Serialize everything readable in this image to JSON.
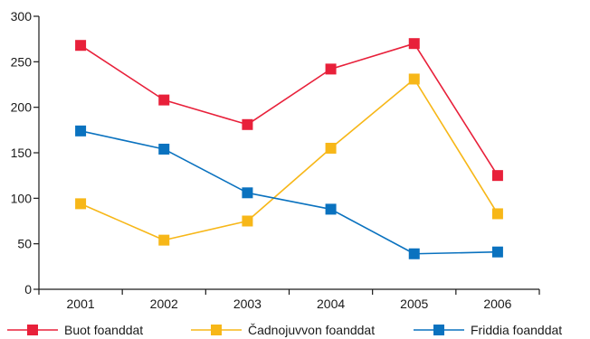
{
  "chart_data": {
    "type": "line",
    "title": "",
    "xlabel": "",
    "ylabel": "",
    "categories": [
      "2001",
      "2002",
      "2003",
      "2004",
      "2005",
      "2006"
    ],
    "ylim": [
      0,
      300
    ],
    "yticks": [
      0,
      50,
      100,
      150,
      200,
      250,
      300
    ],
    "grid": false,
    "legend_position": "bottom",
    "series": [
      {
        "name": "Buot foanddat",
        "color": "#e8203a",
        "values": [
          268,
          208,
          181,
          242,
          270,
          125
        ]
      },
      {
        "name": "Čadnojuvvon foanddat",
        "color": "#f7b718",
        "values": [
          94,
          54,
          75,
          155,
          231,
          83
        ]
      },
      {
        "name": "Friddia foanddat",
        "color": "#0a72bf",
        "values": [
          174,
          154,
          106,
          88,
          39,
          41
        ]
      }
    ]
  }
}
